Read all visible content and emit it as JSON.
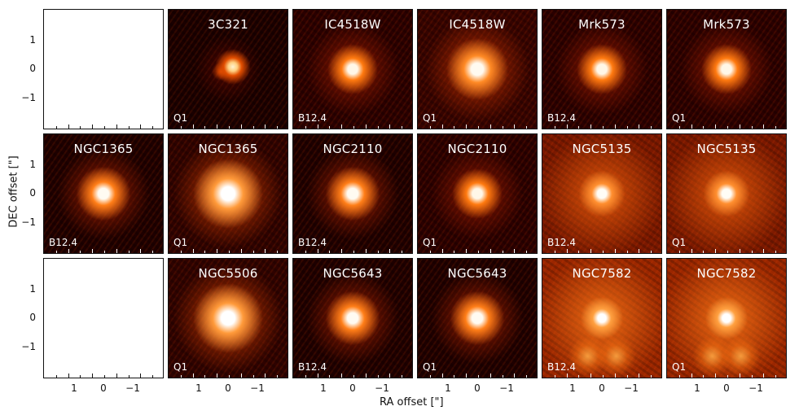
{
  "figure": {
    "ylabel": "DEC offset [\"]",
    "xlabel": "RA offset [\"]",
    "yticks": [
      "1",
      "0",
      "−1"
    ],
    "xticks": [
      "1",
      "0",
      "−1"
    ]
  },
  "panels": [
    {
      "empty": true
    },
    {
      "title": "3C321",
      "label": "Q1",
      "style": "compact"
    },
    {
      "title": "IC4518W",
      "label": "B12.4",
      "style": "noisy"
    },
    {
      "title": "IC4518W",
      "label": "Q1",
      "style": "diffuse"
    },
    {
      "title": "Mrk573",
      "label": "B12.4",
      "style": "noisy"
    },
    {
      "title": "Mrk573",
      "label": "Q1",
      "style": "noisy"
    },
    {
      "title": "NGC1365",
      "label": "B12.4",
      "style": "medium"
    },
    {
      "title": "NGC1365",
      "label": "Q1",
      "style": "bright"
    },
    {
      "title": "NGC2110",
      "label": "B12.4",
      "style": "medium"
    },
    {
      "title": "NGC2110",
      "label": "Q1",
      "style": "noisy"
    },
    {
      "title": "NGC5135",
      "label": "B12.4",
      "style": "extended"
    },
    {
      "title": "NGC5135",
      "label": "Q1",
      "style": "extended"
    },
    {
      "empty": true
    },
    {
      "title": "NGC5506",
      "label": "Q1",
      "style": "bright"
    },
    {
      "title": "NGC5643",
      "label": "B12.4",
      "style": "medium"
    },
    {
      "title": "NGC5643",
      "label": "Q1",
      "style": "medium"
    },
    {
      "title": "NGC7582",
      "label": "B12.4",
      "style": "double"
    },
    {
      "title": "NGC7582",
      "label": "Q1",
      "style": "double"
    }
  ]
}
